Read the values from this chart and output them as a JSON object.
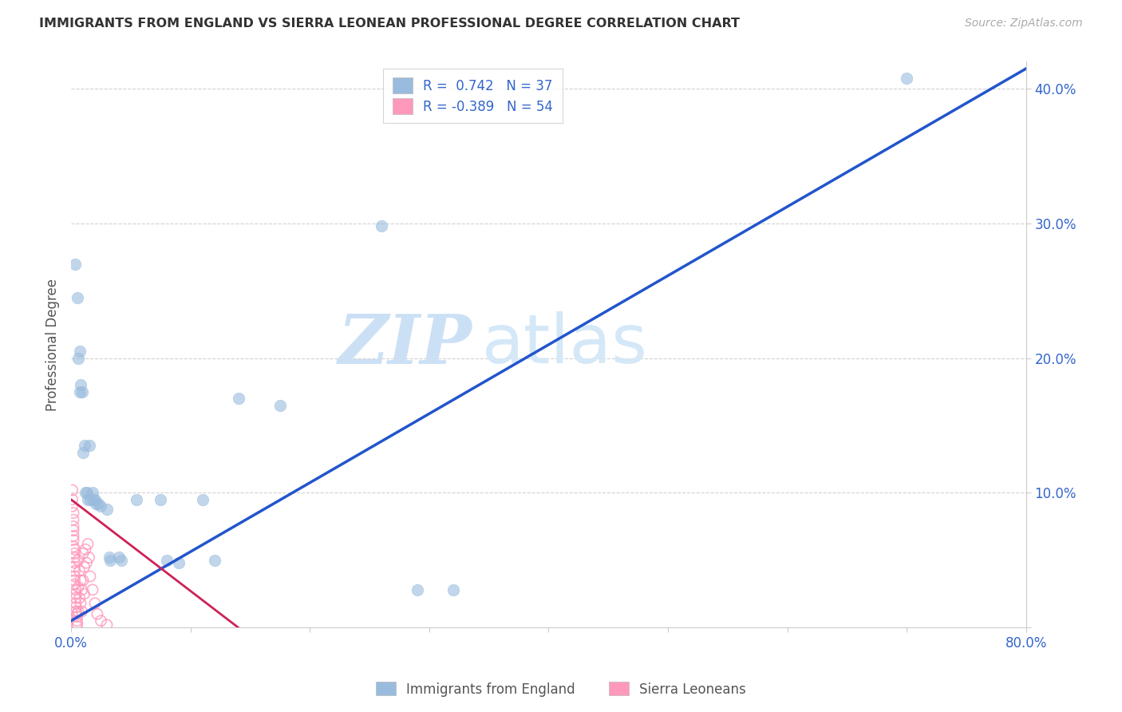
{
  "title": "IMMIGRANTS FROM ENGLAND VS SIERRA LEONEAN PROFESSIONAL DEGREE CORRELATION CHART",
  "source": "Source: ZipAtlas.com",
  "ylabel": "Professional Degree",
  "xlim": [
    0.0,
    0.8
  ],
  "ylim": [
    0.0,
    0.42
  ],
  "xticks": [
    0.0,
    0.1,
    0.2,
    0.3,
    0.4,
    0.5,
    0.6,
    0.7,
    0.8
  ],
  "xticklabels": [
    "0.0%",
    "",
    "",
    "",
    "",
    "",
    "",
    "",
    "80.0%"
  ],
  "yticks": [
    0.0,
    0.1,
    0.2,
    0.3,
    0.4
  ],
  "yticklabels": [
    "",
    "10.0%",
    "20.0%",
    "30.0%",
    "40.0%"
  ],
  "watermark_zip": "ZIP",
  "watermark_atlas": "atlas",
  "color_blue": "#99BBDD",
  "color_pink": "#FF99BB",
  "line_blue": "#2255CC",
  "line_pink": "#CC2255",
  "blue_scatter": [
    [
      0.003,
      0.27
    ],
    [
      0.005,
      0.245
    ],
    [
      0.006,
      0.2
    ],
    [
      0.007,
      0.205
    ],
    [
      0.007,
      0.175
    ],
    [
      0.008,
      0.18
    ],
    [
      0.009,
      0.175
    ],
    [
      0.01,
      0.13
    ],
    [
      0.011,
      0.135
    ],
    [
      0.012,
      0.1
    ],
    [
      0.013,
      0.1
    ],
    [
      0.014,
      0.095
    ],
    [
      0.015,
      0.135
    ],
    [
      0.016,
      0.095
    ],
    [
      0.018,
      0.1
    ],
    [
      0.019,
      0.095
    ],
    [
      0.02,
      0.095
    ],
    [
      0.021,
      0.092
    ],
    [
      0.023,
      0.092
    ],
    [
      0.025,
      0.09
    ],
    [
      0.03,
      0.088
    ],
    [
      0.032,
      0.052
    ],
    [
      0.033,
      0.05
    ],
    [
      0.04,
      0.052
    ],
    [
      0.042,
      0.05
    ],
    [
      0.055,
      0.095
    ],
    [
      0.075,
      0.095
    ],
    [
      0.08,
      0.05
    ],
    [
      0.09,
      0.048
    ],
    [
      0.11,
      0.095
    ],
    [
      0.12,
      0.05
    ],
    [
      0.14,
      0.17
    ],
    [
      0.175,
      0.165
    ],
    [
      0.26,
      0.298
    ],
    [
      0.29,
      0.028
    ],
    [
      0.32,
      0.028
    ],
    [
      0.7,
      0.408
    ]
  ],
  "pink_scatter": [
    [
      0.001,
      0.102
    ],
    [
      0.001,
      0.095
    ],
    [
      0.001,
      0.09
    ],
    [
      0.002,
      0.085
    ],
    [
      0.002,
      0.08
    ],
    [
      0.002,
      0.075
    ],
    [
      0.002,
      0.072
    ],
    [
      0.002,
      0.068
    ],
    [
      0.002,
      0.065
    ],
    [
      0.002,
      0.06
    ],
    [
      0.003,
      0.058
    ],
    [
      0.003,
      0.055
    ],
    [
      0.003,
      0.052
    ],
    [
      0.003,
      0.048
    ],
    [
      0.003,
      0.045
    ],
    [
      0.003,
      0.042
    ],
    [
      0.003,
      0.038
    ],
    [
      0.003,
      0.035
    ],
    [
      0.003,
      0.032
    ],
    [
      0.004,
      0.028
    ],
    [
      0.004,
      0.025
    ],
    [
      0.004,
      0.022
    ],
    [
      0.004,
      0.018
    ],
    [
      0.004,
      0.015
    ],
    [
      0.004,
      0.012
    ],
    [
      0.005,
      0.01
    ],
    [
      0.005,
      0.008
    ],
    [
      0.005,
      0.005
    ],
    [
      0.005,
      0.003
    ],
    [
      0.005,
      0.001
    ],
    [
      0.006,
      0.05
    ],
    [
      0.006,
      0.03
    ],
    [
      0.006,
      0.012
    ],
    [
      0.007,
      0.042
    ],
    [
      0.007,
      0.022
    ],
    [
      0.008,
      0.035
    ],
    [
      0.008,
      0.018
    ],
    [
      0.009,
      0.028
    ],
    [
      0.009,
      0.012
    ],
    [
      0.01,
      0.055
    ],
    [
      0.01,
      0.035
    ],
    [
      0.011,
      0.045
    ],
    [
      0.011,
      0.025
    ],
    [
      0.012,
      0.058
    ],
    [
      0.013,
      0.048
    ],
    [
      0.014,
      0.062
    ],
    [
      0.015,
      0.052
    ],
    [
      0.016,
      0.038
    ],
    [
      0.018,
      0.028
    ],
    [
      0.02,
      0.018
    ],
    [
      0.022,
      0.01
    ],
    [
      0.025,
      0.005
    ],
    [
      0.03,
      0.002
    ]
  ],
  "blue_line_x": [
    0.0,
    0.8
  ],
  "blue_line_y": [
    0.005,
    0.415
  ],
  "pink_line_x": [
    0.0,
    0.14
  ],
  "pink_line_y": [
    0.095,
    0.0
  ]
}
